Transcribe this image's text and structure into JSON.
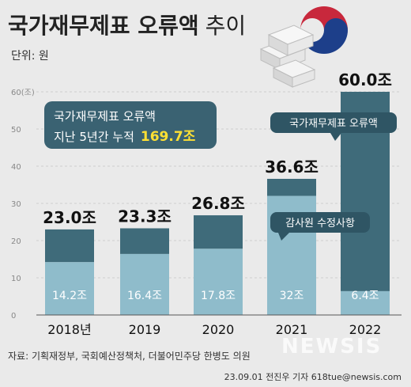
{
  "header": {
    "title_bold": "국가재무제표 오류액",
    "title_light": "추이",
    "unit": "단위: 원"
  },
  "chart_data": {
    "type": "bar",
    "title": "국가재무제표 오류액 추이",
    "categories": [
      "2018년",
      "2019",
      "2020",
      "2021",
      "2022"
    ],
    "ylim": [
      0,
      60
    ],
    "yticks": [
      0,
      10,
      20,
      30,
      40,
      50,
      60
    ],
    "ytick_labels": [
      "0",
      "10",
      "20",
      "30",
      "40",
      "50",
      "60(조)"
    ],
    "totals": [
      23.0,
      23.3,
      26.8,
      36.6,
      60.0
    ],
    "total_labels": [
      "23.0조",
      "23.3조",
      "26.8조",
      "36.6조",
      "60.0조"
    ],
    "series": [
      {
        "name": "감사원 수정사항",
        "values": [
          14.2,
          16.4,
          17.8,
          32,
          6.4
        ],
        "labels": [
          "14.2조",
          "16.4조",
          "17.8조",
          "32조",
          "6.4조"
        ],
        "color": "#8fbccb"
      },
      {
        "name": "국가재무제표 오류액",
        "values": [
          8.8,
          6.9,
          9.0,
          4.6,
          53.6
        ],
        "color": "#3f6b7a"
      }
    ],
    "callouts": {
      "summary_line1": "국가재무제표 오류액",
      "summary_line2_prefix": "지난 5년간 누적",
      "summary_value": "169.7조",
      "legend_error": "국가재무제표 오류액",
      "legend_audit": "감사원 수정사항"
    },
    "grid": true
  },
  "footer": {
    "source": "자료: 기획재정부, 국회예산정책처, 더불어민주당 한병도 의원",
    "credit": "23.09.01  전진우 기자  618tue@newsis.com",
    "watermark": "NEWSIS"
  },
  "colors": {
    "background": "#eaeaea",
    "bar_light": "#8fbccb",
    "bar_dark": "#3f6b7a",
    "callout": "#3a6272",
    "highlight": "#ffe033"
  }
}
